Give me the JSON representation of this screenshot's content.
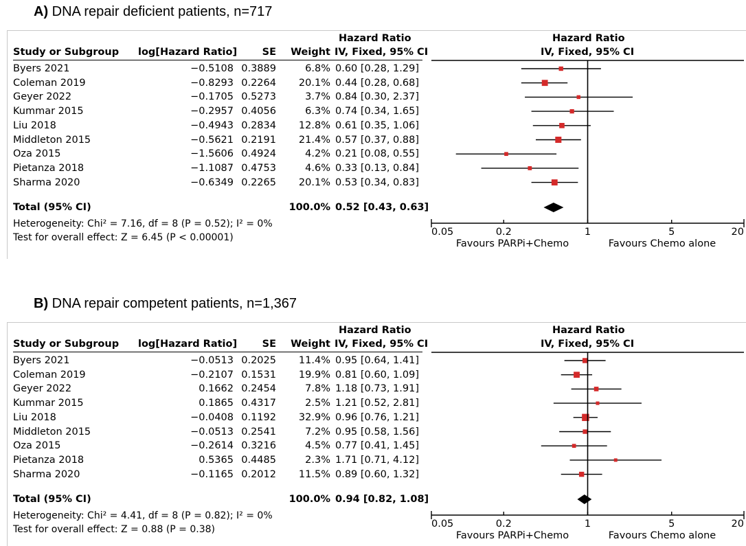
{
  "columns": {
    "study": "Study or Subgroup",
    "loghr": "log[Hazard Ratio]",
    "se": "SE",
    "weight": "Weight",
    "hr_top": "Hazard Ratio",
    "hr_bottom": "IV, Fixed, 95% CI",
    "plot_top": "Hazard Ratio",
    "plot_bottom": "IV, Fixed, 95% CI"
  },
  "colors": {
    "marker": "#d42a2a",
    "ink": "#000000",
    "frame": "#c8c8c8"
  },
  "chart_data": [
    {
      "type": "forest",
      "title_prefix": "A)",
      "title": "DNA repair deficient patients,  n=717",
      "x_scale": "log",
      "xlim": [
        0.05,
        20
      ],
      "ticks": [
        0.05,
        0.2,
        1,
        5,
        20
      ],
      "tick_labels": [
        "0.05",
        "0.2",
        "1",
        "5",
        "20"
      ],
      "favours_left": "Favours PARPi+Chemo",
      "favours_right": "Favours Chemo alone",
      "studies": [
        {
          "name": "Byers 2021",
          "loghr": "−0.5108",
          "se": "0.3889",
          "weight": "6.8%",
          "ci_text": "0.60 [0.28, 1.29]",
          "hr": 0.6,
          "lo": 0.28,
          "hi": 1.29,
          "w": 6.8
        },
        {
          "name": "Coleman 2019",
          "loghr": "−0.8293",
          "se": "0.2264",
          "weight": "20.1%",
          "ci_text": "0.44 [0.28, 0.68]",
          "hr": 0.44,
          "lo": 0.28,
          "hi": 0.68,
          "w": 20.1
        },
        {
          "name": "Geyer 2022",
          "loghr": "−0.1705",
          "se": "0.5273",
          "weight": "3.7%",
          "ci_text": "0.84 [0.30, 2.37]",
          "hr": 0.84,
          "lo": 0.3,
          "hi": 2.37,
          "w": 3.7
        },
        {
          "name": "Kummar 2015",
          "loghr": "−0.2957",
          "se": "0.4056",
          "weight": "6.3%",
          "ci_text": "0.74 [0.34, 1.65]",
          "hr": 0.74,
          "lo": 0.34,
          "hi": 1.65,
          "w": 6.3
        },
        {
          "name": "Liu 2018",
          "loghr": "−0.4943",
          "se": "0.2834",
          "weight": "12.8%",
          "ci_text": "0.61 [0.35, 1.06]",
          "hr": 0.61,
          "lo": 0.35,
          "hi": 1.06,
          "w": 12.8
        },
        {
          "name": "Middleton 2015",
          "loghr": "−0.5621",
          "se": "0.2191",
          "weight": "21.4%",
          "ci_text": "0.57 [0.37, 0.88]",
          "hr": 0.57,
          "lo": 0.37,
          "hi": 0.88,
          "w": 21.4
        },
        {
          "name": "Oza 2015",
          "loghr": "−1.5606",
          "se": "0.4924",
          "weight": "4.2%",
          "ci_text": "0.21 [0.08, 0.55]",
          "hr": 0.21,
          "lo": 0.08,
          "hi": 0.55,
          "w": 4.2
        },
        {
          "name": "Pietanza 2018",
          "loghr": "−1.1087",
          "se": "0.4753",
          "weight": "4.6%",
          "ci_text": "0.33 [0.13, 0.84]",
          "hr": 0.33,
          "lo": 0.13,
          "hi": 0.84,
          "w": 4.6
        },
        {
          "name": "Sharma 2020",
          "loghr": "−0.6349",
          "se": "0.2265",
          "weight": "20.1%",
          "ci_text": "0.53 [0.34, 0.83]",
          "hr": 0.53,
          "lo": 0.34,
          "hi": 0.83,
          "w": 20.1
        }
      ],
      "total": {
        "label": "Total (95% CI)",
        "weight": "100.0%",
        "ci_text": "0.52 [0.43, 0.63]",
        "hr": 0.52,
        "lo": 0.43,
        "hi": 0.63
      },
      "heterogeneity": "Heterogeneity: Chi² = 7.16, df = 8 (P = 0.52); I² = 0%",
      "overall_effect": "Test for overall effect: Z = 6.45 (P < 0.00001)"
    },
    {
      "type": "forest",
      "title_prefix": "B)",
      "title": "DNA repair competent patients,  n=1,367",
      "x_scale": "log",
      "xlim": [
        0.05,
        20
      ],
      "ticks": [
        0.05,
        0.2,
        1,
        5,
        20
      ],
      "tick_labels": [
        "0.05",
        "0.2",
        "1",
        "5",
        "20"
      ],
      "favours_left": "Favours PARPi+Chemo",
      "favours_right": "Favours Chemo alone",
      "studies": [
        {
          "name": "Byers 2021",
          "loghr": "−0.0513",
          "se": "0.2025",
          "weight": "11.4%",
          "ci_text": "0.95 [0.64, 1.41]",
          "hr": 0.95,
          "lo": 0.64,
          "hi": 1.41,
          "w": 11.4
        },
        {
          "name": "Coleman 2019",
          "loghr": "−0.2107",
          "se": "0.1531",
          "weight": "19.9%",
          "ci_text": "0.81 [0.60, 1.09]",
          "hr": 0.81,
          "lo": 0.6,
          "hi": 1.09,
          "w": 19.9
        },
        {
          "name": "Geyer 2022",
          "loghr": "0.1662",
          "se": "0.2454",
          "weight": "7.8%",
          "ci_text": "1.18 [0.73, 1.91]",
          "hr": 1.18,
          "lo": 0.73,
          "hi": 1.91,
          "w": 7.8
        },
        {
          "name": "Kummar 2015",
          "loghr": "0.1865",
          "se": "0.4317",
          "weight": "2.5%",
          "ci_text": "1.21 [0.52, 2.81]",
          "hr": 1.21,
          "lo": 0.52,
          "hi": 2.81,
          "w": 2.5
        },
        {
          "name": "Liu 2018",
          "loghr": "−0.0408",
          "se": "0.1192",
          "weight": "32.9%",
          "ci_text": "0.96 [0.76, 1.21]",
          "hr": 0.96,
          "lo": 0.76,
          "hi": 1.21,
          "w": 32.9
        },
        {
          "name": "Middleton 2015",
          "loghr": "−0.0513",
          "se": "0.2541",
          "weight": "7.2%",
          "ci_text": "0.95 [0.58, 1.56]",
          "hr": 0.95,
          "lo": 0.58,
          "hi": 1.56,
          "w": 7.2
        },
        {
          "name": "Oza 2015",
          "loghr": "−0.2614",
          "se": "0.3216",
          "weight": "4.5%",
          "ci_text": "0.77 [0.41, 1.45]",
          "hr": 0.77,
          "lo": 0.41,
          "hi": 1.45,
          "w": 4.5
        },
        {
          "name": "Pietanza 2018",
          "loghr": "0.5365",
          "se": "0.4485",
          "weight": "2.3%",
          "ci_text": "1.71 [0.71, 4.12]",
          "hr": 1.71,
          "lo": 0.71,
          "hi": 4.12,
          "w": 2.3
        },
        {
          "name": "Sharma 2020",
          "loghr": "−0.1165",
          "se": "0.2012",
          "weight": "11.5%",
          "ci_text": "0.89 [0.60, 1.32]",
          "hr": 0.89,
          "lo": 0.6,
          "hi": 1.32,
          "w": 11.5
        }
      ],
      "total": {
        "label": "Total (95% CI)",
        "weight": "100.0%",
        "ci_text": "0.94 [0.82, 1.08]",
        "hr": 0.94,
        "lo": 0.82,
        "hi": 1.08
      },
      "heterogeneity": "Heterogeneity: Chi² = 4.41, df = 8 (P = 0.82); I² = 0%",
      "overall_effect": "Test for overall effect: Z = 0.88 (P = 0.38)"
    }
  ]
}
